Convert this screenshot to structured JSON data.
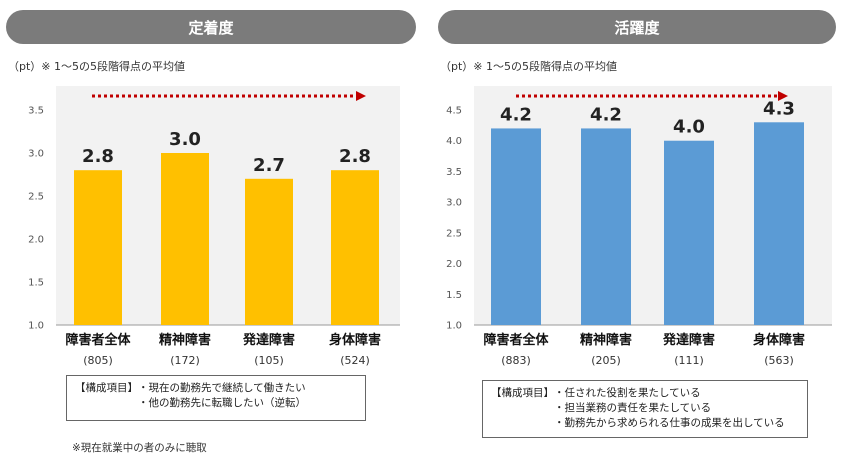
{
  "left_panel": {
    "header": "定着度",
    "unit_note": "（pt）※ 1～5の5段階得点の平均値",
    "box_title": "【構成項目】",
    "box_items": [
      "・現在の勤務先で継続して働きたい",
      "・他の勤務先に転職したい（逆転）"
    ],
    "footnote": "※現在就業中の者のみに聴取"
  },
  "right_panel": {
    "header": "活躍度",
    "unit_note": "（pt）※ 1～5の5段階得点の平均値",
    "box_title": "【構成項目】",
    "box_items": [
      "・任された役割を果たしている",
      "・担当業務の責任を果たしている",
      "・勤務先から求められる仕事の成果を出している"
    ]
  },
  "chart_data": [
    {
      "type": "bar",
      "title": "定着度",
      "categories": [
        "障害者全体",
        "精神障害",
        "発達障害",
        "身体障害"
      ],
      "counts": [
        "(805)",
        "(172)",
        "(105)",
        "(524)"
      ],
      "values": [
        2.8,
        3.0,
        2.7,
        2.8
      ],
      "value_labels": [
        "2.8",
        "3.0",
        "2.7",
        "2.8"
      ],
      "yticks": [
        "1.0",
        "1.5",
        "2.0",
        "2.5",
        "3.0",
        "3.5"
      ],
      "ylim": [
        1.0,
        3.5
      ],
      "bar_color": "#ffc000",
      "arrow_color": "#c00000",
      "grid": false
    },
    {
      "type": "bar",
      "title": "活躍度",
      "categories": [
        "障害者全体",
        "精神障害",
        "発達障害",
        "身体障害"
      ],
      "counts": [
        "(883)",
        "(205)",
        "(111)",
        "(563)"
      ],
      "values": [
        4.2,
        4.2,
        4.0,
        4.3
      ],
      "value_labels": [
        "4.2",
        "4.2",
        "4.0",
        "4.3"
      ],
      "yticks": [
        "1.0",
        "1.5",
        "2.0",
        "2.5",
        "3.0",
        "3.5",
        "4.0",
        "4.5"
      ],
      "ylim": [
        1.0,
        4.5
      ],
      "bar_color": "#5b9bd5",
      "arrow_color": "#c00000",
      "grid": false
    }
  ]
}
